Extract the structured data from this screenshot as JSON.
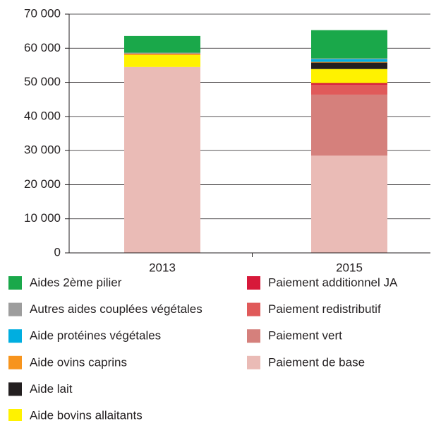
{
  "chart_data": {
    "type": "stacked_bar",
    "categories": [
      "2013",
      "2015"
    ],
    "series": [
      {
        "name": "Aides 2ème pilier",
        "color": "#1aa84a",
        "values": [
          4900,
          8300
        ]
      },
      {
        "name": "Autres aides couplées végétales",
        "color": "#9d9d9d",
        "values": [
          300,
          200
        ]
      },
      {
        "name": "Aide protéines végétales",
        "color": "#00aee0",
        "values": [
          0,
          800
        ]
      },
      {
        "name": "Aide ovins caprins",
        "color": "#f7941d",
        "values": [
          400,
          200
        ]
      },
      {
        "name": "Aide lait",
        "color": "#231f20",
        "values": [
          0,
          1900
        ]
      },
      {
        "name": "Aide bovins allaitants",
        "color": "#fff200",
        "values": [
          3500,
          4100
        ]
      },
      {
        "name": "Paiement additionnel JA",
        "color": "#d7193a",
        "values": [
          0,
          500
        ]
      },
      {
        "name": "Paiement redistributif",
        "color": "#e05a5a",
        "values": [
          0,
          2900
        ]
      },
      {
        "name": "Paiement vert",
        "color": "#d5807c",
        "values": [
          0,
          17900
        ]
      },
      {
        "name": "Paiement de base",
        "color": "#eabbb6",
        "values": [
          54500,
          28500
        ]
      }
    ],
    "ylim": [
      0,
      70000
    ],
    "yticks": [
      {
        "value": 0,
        "label": "0"
      },
      {
        "value": 10000,
        "label": "10 000"
      },
      {
        "value": 20000,
        "label": "20 000"
      },
      {
        "value": 30000,
        "label": "30 000"
      },
      {
        "value": 40000,
        "label": "40 000"
      },
      {
        "value": 50000,
        "label": "50 000"
      },
      {
        "value": 60000,
        "label": "60 000"
      },
      {
        "value": 70000,
        "label": "70 000"
      }
    ],
    "grid": true
  }
}
